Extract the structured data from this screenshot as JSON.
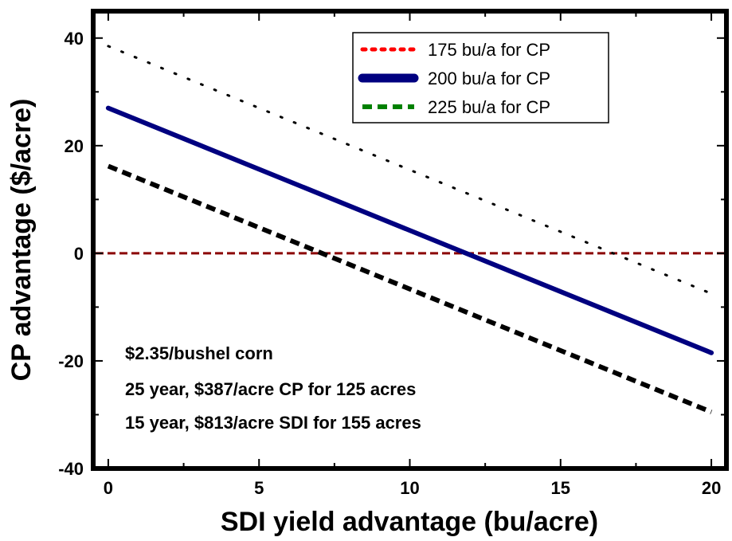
{
  "chart_data": {
    "type": "line",
    "title": "",
    "xlabel": "SDI yield advantage (bu/acre)",
    "ylabel": "CP advantage ($/acre)",
    "xlim": [
      -0.5,
      20.5
    ],
    "ylim": [
      -40,
      45
    ],
    "xticks": [
      0,
      5,
      10,
      15,
      20
    ],
    "yticks": [
      -40,
      -20,
      0,
      20,
      40
    ],
    "grid": false,
    "legend_position": "top-right",
    "legend": [
      {
        "label": "175 bu/a for CP",
        "color": "#ff0000",
        "dash": "dotted"
      },
      {
        "label": "200 bu/a for CP",
        "color": "#000080",
        "dash": "solid"
      },
      {
        "label": "225 bu/a for CP",
        "color": "#008000",
        "dash": "dashed"
      }
    ],
    "series": [
      {
        "x": [
          0,
          20
        ],
        "values": [
          38.5,
          -7.5
        ],
        "color": "#000000",
        "dash": "dotted"
      },
      {
        "x": [
          0,
          20
        ],
        "values": [
          27,
          -18.5
        ],
        "color": "#000080",
        "dash": "solid"
      },
      {
        "x": [
          0,
          20
        ],
        "values": [
          16.2,
          -29.5
        ],
        "color": "#000000",
        "dash": "dashed"
      }
    ],
    "reference_line": {
      "y": 0,
      "color": "#8b0000",
      "dash": "dashed"
    },
    "annotations": [
      "$2.35/bushel corn",
      "25 year, $387/acre CP for 125 acres",
      "15 year, $813/acre SDI for 155 acres"
    ]
  }
}
